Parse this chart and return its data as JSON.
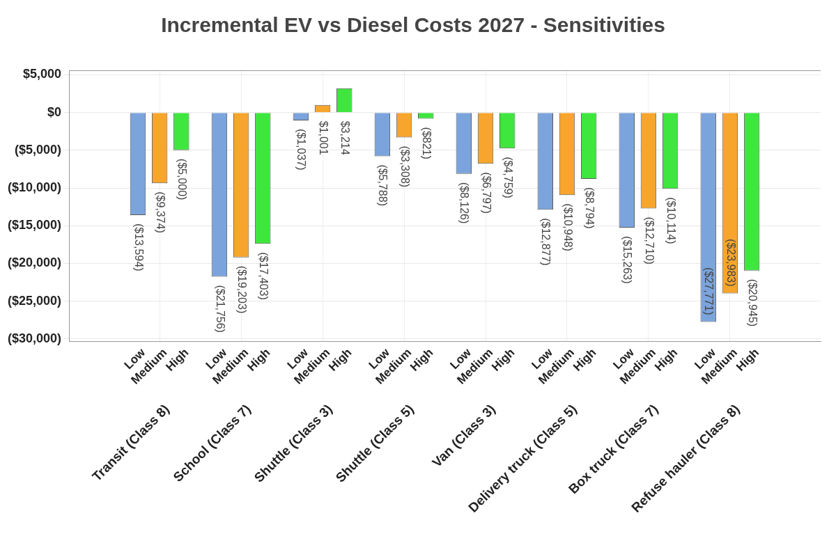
{
  "chart_data": {
    "type": "bar",
    "title": "Incremental EV vs Diesel Costs 2027 - Sensitivities",
    "categories": [
      "Low",
      "Medium",
      "High",
      "Low",
      "Medium",
      "High",
      "Low",
      "Medium",
      "High",
      "Low",
      "Medium",
      "High",
      "Low",
      "Medium",
      "High",
      "Low",
      "Medium",
      "High",
      "Low",
      "Medium",
      "High",
      "Low",
      "Medium",
      "High"
    ],
    "values": [
      -13594,
      -9374,
      -5000,
      -21756,
      -19203,
      -17403,
      -1037,
      1001,
      3214,
      -5788,
      -3308,
      -821,
      -8126,
      -6797,
      -4759,
      -12877,
      -10948,
      -8794,
      -15263,
      -12710,
      -10114,
      -27771,
      -23983,
      -20945
    ],
    "colors": [
      "#7ba4dc",
      "#f7a52d",
      "#3ee63e",
      "#7ba4dc",
      "#f7a52d",
      "#3ee63e",
      "#7ba4dc",
      "#f7a52d",
      "#3ee63e",
      "#7ba4dc",
      "#f7a52d",
      "#3ee63e",
      "#7ba4dc",
      "#f7a52d",
      "#3ee63e",
      "#7ba4dc",
      "#f7a52d",
      "#3ee63e",
      "#7ba4dc",
      "#f7a52d",
      "#3ee63e",
      "#7ba4dc",
      "#f7a52d",
      "#3ee63e"
    ],
    "value_labels": [
      "($13,594)",
      "($9,374)",
      "($5,000)",
      "($21,756)",
      "($19,203)",
      "($17,403)",
      "($1,037)",
      "$1,001",
      "$3,214",
      "($5,788)",
      "($3,308)",
      "($821)",
      "($8,126)",
      "($6,797)",
      "($4,759)",
      "($12,877)",
      "($10,948)",
      "($8,794)",
      "($15,263)",
      "($12,710)",
      "($10,114)",
      "($27,771)",
      "($23,983)",
      "($20,945)"
    ],
    "annotations": [
      "Transit (Class 8)",
      "School (Class 7)",
      "Shuttle (Class 3)",
      "Shuttle (Class 5)",
      "Van (Class 3)",
      "Delivery truck (Class 5)",
      "Box truck (Class 7)",
      "Refuse hauler (Class 8)"
    ],
    "ylim": [
      -30300,
      5600
    ],
    "yticks": [
      {
        "value": 5000,
        "label": "$5,000"
      },
      {
        "value": 0,
        "label": "$0"
      },
      {
        "value": -5000,
        "label": "($5,000)"
      },
      {
        "value": -10000,
        "label": "($10,000)"
      },
      {
        "value": -15000,
        "label": "($15,000)"
      },
      {
        "value": -20000,
        "label": "($20,000)"
      },
      {
        "value": -25000,
        "label": "($25,000)"
      },
      {
        "value": -30000,
        "label": "($30,000)"
      }
    ],
    "grid": true
  }
}
